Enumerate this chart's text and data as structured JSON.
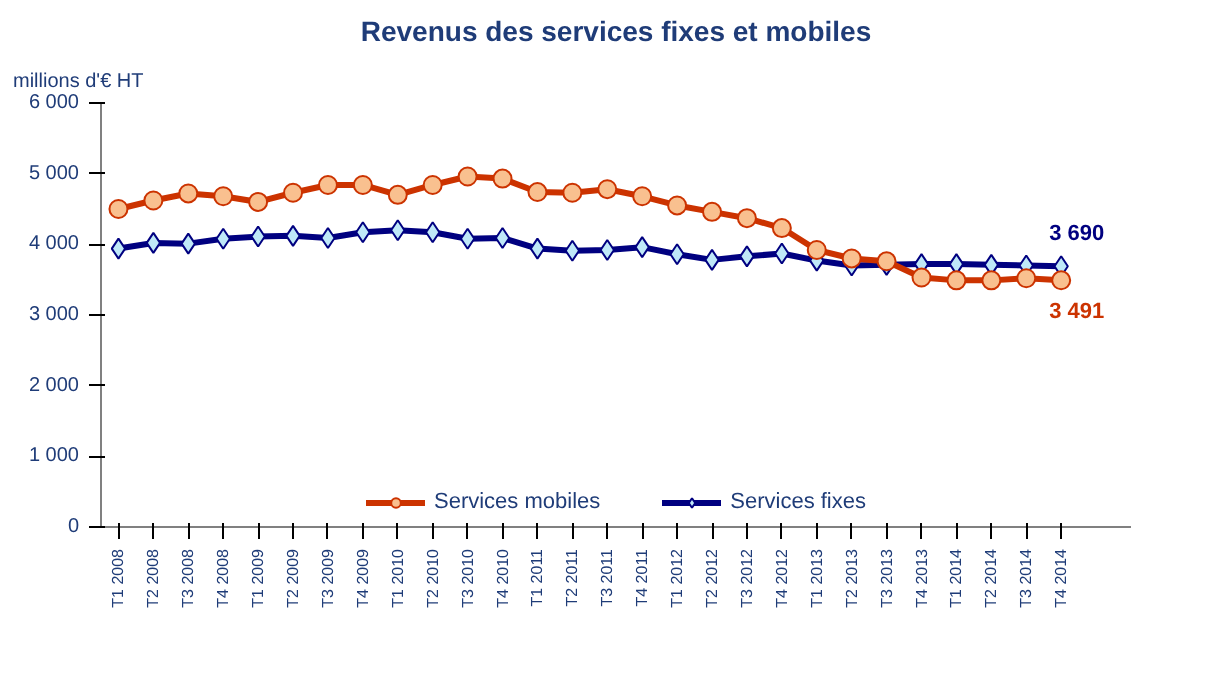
{
  "chart_data": {
    "type": "line",
    "title": "Revenus des services fixes et mobiles",
    "ylabel": "millions d'€ HT",
    "categories": [
      "T1 2008",
      "T2 2008",
      "T3 2008",
      "T4 2008",
      "T1 2009",
      "T2 2009",
      "T3 2009",
      "T4 2009",
      "T1 2010",
      "T2 2010",
      "T3 2010",
      "T4 2010",
      "T1 2011",
      "T2 2011",
      "T3 2011",
      "T4 2011",
      "T1 2012",
      "T2 2012",
      "T3 2012",
      "T4 2012",
      "T1 2013",
      "T2 2013",
      "T3 2013",
      "T4 2013",
      "T1 2014",
      "T2 2014",
      "T3 2014",
      "T4 2014"
    ],
    "series": [
      {
        "name": "Services mobiles",
        "color": "#cc3300",
        "marker": "circle",
        "values": [
          4500,
          4620,
          4720,
          4680,
          4600,
          4730,
          4840,
          4840,
          4700,
          4840,
          4960,
          4930,
          4740,
          4730,
          4780,
          4680,
          4550,
          4460,
          4370,
          4230,
          3920,
          3800,
          3760,
          3530,
          3490,
          3490,
          3520,
          3491
        ],
        "value_labels": [
          null,
          null,
          null,
          null,
          null,
          null,
          null,
          null,
          null,
          null,
          null,
          null,
          null,
          null,
          null,
          null,
          null,
          null,
          null,
          null,
          null,
          null,
          null,
          null,
          null,
          null,
          null,
          "3 491"
        ]
      },
      {
        "name": "Services fixes",
        "color": "#000080",
        "marker": "diamond",
        "values": [
          3940,
          4020,
          4010,
          4080,
          4110,
          4120,
          4090,
          4170,
          4200,
          4170,
          4080,
          4090,
          3940,
          3910,
          3920,
          3960,
          3860,
          3780,
          3830,
          3870,
          3770,
          3700,
          3710,
          3720,
          3720,
          3710,
          3700,
          3690
        ],
        "value_labels": [
          null,
          null,
          null,
          null,
          null,
          null,
          null,
          null,
          null,
          null,
          null,
          null,
          null,
          null,
          null,
          null,
          null,
          null,
          null,
          null,
          null,
          null,
          null,
          null,
          null,
          null,
          null,
          "3 690"
        ]
      }
    ],
    "ylim": [
      0,
      6000
    ],
    "yticks": [
      {
        "value": 0,
        "label": "0"
      },
      {
        "value": 1000,
        "label": "1 000"
      },
      {
        "value": 2000,
        "label": "2 000"
      },
      {
        "value": 3000,
        "label": "3 000"
      },
      {
        "value": 4000,
        "label": "4 000"
      },
      {
        "value": 5000,
        "label": "5 000"
      },
      {
        "value": 6000,
        "label": "6 000"
      }
    ],
    "grid": false,
    "legend": "bottom",
    "line_style": "solid"
  }
}
